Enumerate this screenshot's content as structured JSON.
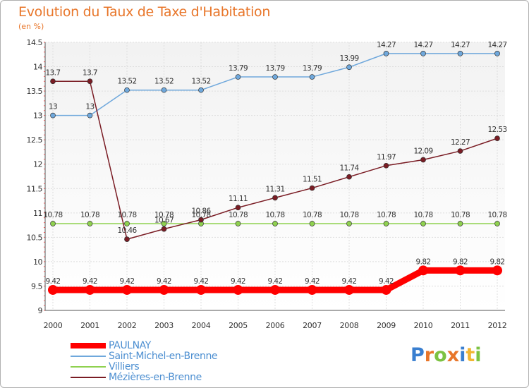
{
  "chart_data": {
    "type": "line",
    "title": "Evolution du Taux de Taxe d'Habitation",
    "subtitle": "(en %)",
    "x": [
      "2000",
      "2001",
      "2002",
      "2003",
      "2004",
      "2005",
      "2006",
      "2007",
      "2008",
      "2009",
      "2010",
      "2011",
      "2012"
    ],
    "ylim": [
      9,
      14.5
    ],
    "yticks": [
      9,
      9.5,
      10,
      10.5,
      11,
      11.5,
      12,
      12.5,
      13,
      13.5,
      14,
      14.5
    ],
    "ytick_labels": [
      "9",
      "9.5",
      "10",
      "10.5",
      "11",
      "11.5",
      "12",
      "12.5",
      "13",
      "13.5",
      "14",
      "14.5"
    ],
    "grid": true,
    "legend_position": "bottom-left",
    "series": [
      {
        "name": "PAULNAY",
        "color": "#ff0000",
        "values": [
          9.42,
          9.42,
          9.42,
          9.42,
          9.42,
          9.42,
          9.42,
          9.42,
          9.42,
          9.42,
          9.82,
          9.82,
          9.82
        ],
        "labels": [
          "9.42",
          "9.42",
          "9.42",
          "9.42",
          "9.42",
          "9.42",
          "9.42",
          "9.42",
          "9.42",
          "9.42",
          "9.82",
          "9.82",
          "9.82"
        ]
      },
      {
        "name": "Saint-Michel-en-Brenne",
        "color": "#6fa8dc",
        "values": [
          13,
          13,
          13.52,
          13.52,
          13.52,
          13.79,
          13.79,
          13.79,
          13.99,
          14.27,
          14.27,
          14.27,
          14.27
        ],
        "labels": [
          "13",
          "13",
          "13.52",
          "13.52",
          "13.52",
          "13.79",
          "13.79",
          "13.79",
          "13.99",
          "14.27",
          "14.27",
          "14.27",
          "14.27"
        ]
      },
      {
        "name": "Villiers",
        "color": "#8fd14f",
        "values": [
          10.78,
          10.78,
          10.78,
          10.78,
          10.78,
          10.78,
          10.78,
          10.78,
          10.78,
          10.78,
          10.78,
          10.78,
          10.78
        ],
        "labels": [
          "10.78",
          "10.78",
          "10.78",
          "10.78",
          "10.78",
          "10.78",
          "10.78",
          "10.78",
          "10.78",
          "10.78",
          "10.78",
          "10.78",
          "10.78"
        ]
      },
      {
        "name": "Mézières-en-Brenne",
        "color": "#7a1c24",
        "values": [
          13.7,
          13.7,
          10.46,
          10.67,
          10.86,
          11.11,
          11.31,
          11.51,
          11.74,
          11.97,
          12.09,
          12.27,
          12.53
        ],
        "labels": [
          "13.7",
          "13.7",
          "10.46",
          "10.67",
          "10.86",
          "11.11",
          "11.31",
          "11.51",
          "11.74",
          "11.97",
          "12.09",
          "12.27",
          "12.53"
        ]
      }
    ]
  },
  "logo": {
    "letters": [
      "P",
      "r",
      "o",
      "x",
      "i",
      "t",
      "i"
    ],
    "colors": [
      "#3a7fd0",
      "#e8762a",
      "#7cc242",
      "#e8762a",
      "#3a7fd0",
      "#f2b632",
      "#7cc242"
    ]
  }
}
